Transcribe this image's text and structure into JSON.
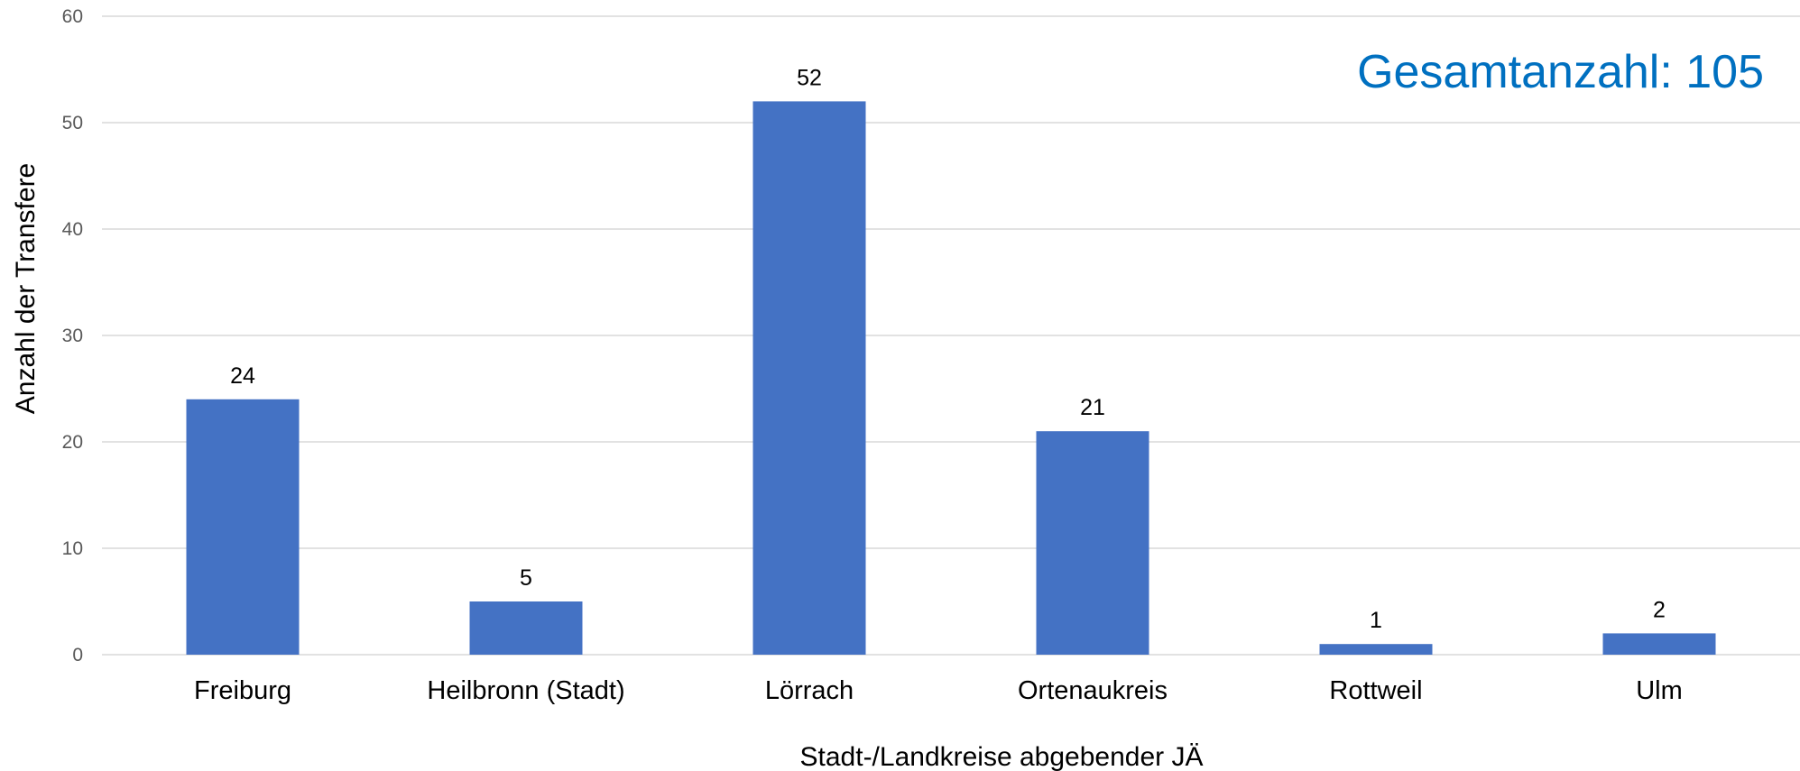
{
  "chart_data": {
    "type": "bar",
    "title": "",
    "annotation": "Gesamtanzahl: 105",
    "xlabel": "Stadt-/Landkreise abgebender JÄ",
    "ylabel": "Anzahl der Transfere",
    "categories": [
      "Freiburg",
      "Heilbronn (Stadt)",
      "Lörrach",
      "Ortenaukreis",
      "Rottweil",
      "Ulm"
    ],
    "values": [
      24,
      5,
      52,
      21,
      1,
      2
    ],
    "ylim": [
      0,
      60
    ],
    "yticks": [
      0,
      10,
      20,
      30,
      40,
      50,
      60
    ],
    "grid": true,
    "legend": "none",
    "colors": {
      "bar": "#4472C4",
      "grid": "#D9D9D9",
      "annotation": "#0070C0"
    }
  }
}
